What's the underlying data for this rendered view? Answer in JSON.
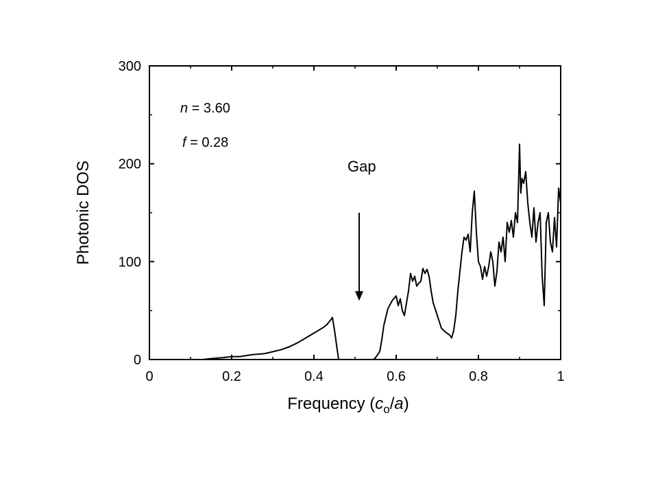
{
  "chart_data": {
    "type": "line",
    "xlabel_prefix": "Frequency (",
    "xlabel_c": "c",
    "xlabel_sub": "o",
    "xlabel_slash": "/",
    "xlabel_a": "a",
    "xlabel_suffix": ")",
    "ylabel": "Photonic DOS",
    "xlim": [
      0,
      1
    ],
    "ylim": [
      0,
      300
    ],
    "xticks": [
      0,
      0.2,
      0.4,
      0.6,
      0.8,
      1
    ],
    "xtick_labels": [
      "0",
      "0.2",
      "0.4",
      "0.6",
      "0.8",
      "1"
    ],
    "yticks": [
      0,
      100,
      200,
      300
    ],
    "ytick_labels": [
      "0",
      "100",
      "200",
      "300"
    ],
    "grid": false,
    "annotations": {
      "n_symbol": "n",
      "n_value": " = 3.60",
      "f_symbol": "f",
      "f_value": " = 0.28",
      "gap_label": "Gap",
      "gap_arrow_x": 0.51,
      "gap_arrow_y_from": 150,
      "gap_arrow_y_to": 60
    },
    "series": [
      {
        "x": [
          0.13,
          0.15,
          0.18,
          0.2,
          0.22,
          0.25,
          0.28,
          0.3,
          0.32,
          0.34,
          0.36,
          0.38,
          0.4,
          0.42,
          0.43,
          0.44,
          0.445,
          0.45,
          0.455,
          0.46,
          0.47,
          0.48,
          0.5,
          0.52,
          0.545,
          0.55,
          0.56,
          0.565,
          0.57,
          0.58,
          0.59,
          0.6,
          0.605,
          0.61,
          0.615,
          0.62,
          0.63,
          0.635,
          0.64,
          0.645,
          0.65,
          0.655,
          0.66,
          0.665,
          0.67,
          0.675,
          0.68,
          0.685,
          0.69,
          0.7,
          0.71,
          0.72,
          0.73,
          0.735,
          0.74,
          0.745,
          0.75,
          0.755,
          0.76,
          0.765,
          0.77,
          0.775,
          0.78,
          0.785,
          0.79,
          0.795,
          0.8,
          0.805,
          0.81,
          0.815,
          0.82,
          0.825,
          0.83,
          0.835,
          0.84,
          0.845,
          0.85,
          0.855,
          0.86,
          0.865,
          0.87,
          0.875,
          0.88,
          0.885,
          0.89,
          0.895,
          0.9,
          0.903,
          0.906,
          0.91,
          0.915,
          0.92,
          0.925,
          0.93,
          0.935,
          0.94,
          0.945,
          0.95,
          0.955,
          0.96,
          0.965,
          0.97,
          0.975,
          0.98,
          0.985,
          0.99,
          0.995,
          1.0
        ],
        "y": [
          0,
          1,
          2,
          3,
          3,
          5,
          6,
          8,
          10,
          13,
          17,
          22,
          27,
          32,
          35,
          40,
          43,
          30,
          15,
          0,
          0,
          0,
          0,
          0,
          0,
          2,
          8,
          20,
          35,
          52,
          60,
          65,
          55,
          62,
          50,
          45,
          70,
          88,
          80,
          85,
          75,
          78,
          80,
          93,
          88,
          92,
          85,
          70,
          58,
          45,
          32,
          28,
          25,
          22,
          30,
          45,
          70,
          90,
          110,
          125,
          122,
          128,
          110,
          150,
          172,
          130,
          100,
          95,
          82,
          95,
          85,
          95,
          110,
          100,
          75,
          90,
          120,
          110,
          125,
          100,
          140,
          130,
          142,
          125,
          150,
          140,
          220,
          170,
          185,
          180,
          192,
          160,
          140,
          125,
          155,
          120,
          140,
          150,
          85,
          55,
          140,
          150,
          120,
          110,
          145,
          115,
          175,
          160
        ]
      }
    ]
  }
}
